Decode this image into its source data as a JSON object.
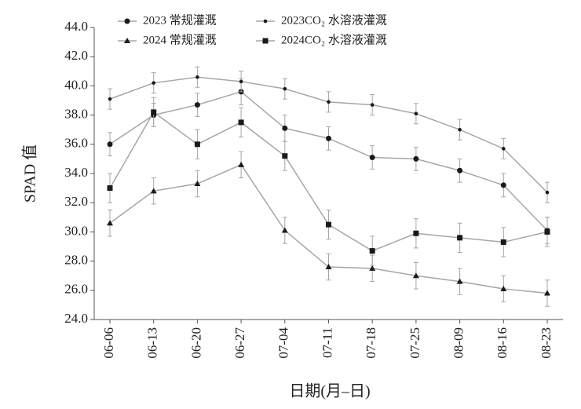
{
  "chart_data": {
    "type": "line",
    "y_label": "SPAD 值",
    "x_label": "日期(月–日)",
    "categories": [
      "06-06",
      "06-13",
      "06-20",
      "06-27",
      "07-04",
      "07-11",
      "07-18",
      "07-25",
      "08-09",
      "08-16",
      "08-23"
    ],
    "ylim": [
      24,
      44
    ],
    "yticks": [
      {
        "value": 24,
        "label": "24.0"
      },
      {
        "value": 26,
        "label": "26.0"
      },
      {
        "value": 28,
        "label": "28.0"
      },
      {
        "value": 30,
        "label": "30.0"
      },
      {
        "value": 32,
        "label": "32.0"
      },
      {
        "value": 34,
        "label": "34.0"
      },
      {
        "value": 36,
        "label": "36.0"
      },
      {
        "value": 38,
        "label": "38.0"
      },
      {
        "value": 40,
        "label": "40.0"
      },
      {
        "value": 42,
        "label": "42.0"
      },
      {
        "value": 44,
        "label": "44.0"
      }
    ],
    "line_color": "#a6a6a6",
    "series": [
      {
        "name": "2023 常规灌溉",
        "marker": "circle",
        "color": "#1a1a1a",
        "values": [
          36.0,
          38.0,
          38.7,
          39.6,
          37.1,
          36.4,
          35.1,
          35.0,
          34.2,
          33.2,
          30.1
        ],
        "errors": [
          0.8,
          0.8,
          0.8,
          0.9,
          0.9,
          0.8,
          0.8,
          0.8,
          0.8,
          0.8,
          0.9
        ]
      },
      {
        "name": "2023CO₂ 水溶液灌溉",
        "marker": "dot",
        "color": "#1a1a1a",
        "values": [
          39.1,
          40.2,
          40.6,
          40.3,
          39.8,
          38.9,
          38.7,
          38.1,
          37.0,
          35.7,
          32.7
        ],
        "errors": [
          0.7,
          0.7,
          0.7,
          0.7,
          0.7,
          0.7,
          0.7,
          0.7,
          0.7,
          0.7,
          0.7
        ]
      },
      {
        "name": "2024 常规灌溉",
        "marker": "triangle",
        "color": "#1a1a1a",
        "values": [
          30.6,
          32.8,
          33.3,
          34.6,
          30.1,
          27.6,
          27.5,
          27.0,
          26.6,
          26.1,
          25.8
        ],
        "errors": [
          0.9,
          0.9,
          0.9,
          0.9,
          0.9,
          0.9,
          0.9,
          0.9,
          0.9,
          0.9,
          0.9
        ]
      },
      {
        "name": "2024CO₂ 水溶液灌溉",
        "marker": "square",
        "color": "#1a1a1a",
        "values": [
          33.0,
          38.2,
          36.0,
          37.5,
          35.2,
          30.5,
          28.7,
          29.9,
          29.6,
          29.3,
          30.0
        ],
        "errors": [
          1.0,
          1.0,
          1.0,
          1.0,
          1.0,
          1.0,
          1.0,
          1.0,
          1.0,
          1.0,
          1.0
        ]
      }
    ]
  }
}
